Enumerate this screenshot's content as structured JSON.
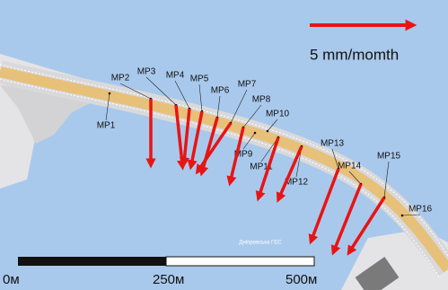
{
  "map": {
    "legend_label": "5 mm/momth",
    "place_label": "Дніпровська ГЕС",
    "scale_bar": [
      "0м",
      "250м",
      "500м"
    ],
    "points": [
      {
        "label": "MP1"
      },
      {
        "label": "MP2",
        "east": 0.0,
        "south": 3.0
      },
      {
        "label": "MP3",
        "east": 0.3,
        "south": 2.8
      },
      {
        "label": "MP4",
        "east": -0.25,
        "south": 2.5
      },
      {
        "label": "MP5",
        "east": -0.5,
        "south": 2.5
      },
      {
        "label": "MP6",
        "east": -0.7,
        "south": 2.5
      },
      {
        "label": "MP7",
        "east": -1.5,
        "south": 2.2
      },
      {
        "label": "MP8",
        "east": -0.6,
        "south": 2.5
      },
      {
        "label": "MP9"
      },
      {
        "label": "MP10"
      },
      {
        "label": "MP11",
        "east": -0.9,
        "south": 2.75
      },
      {
        "label": "MP12",
        "east": -1.05,
        "south": 2.4
      },
      {
        "label": "MP13",
        "east": -1.25,
        "south": 3.3
      },
      {
        "label": "MP14",
        "east": -1.25,
        "south": 3.1
      },
      {
        "label": "MP15",
        "east": -1.6,
        "south": 2.5
      },
      {
        "label": "MP16"
      }
    ]
  }
}
